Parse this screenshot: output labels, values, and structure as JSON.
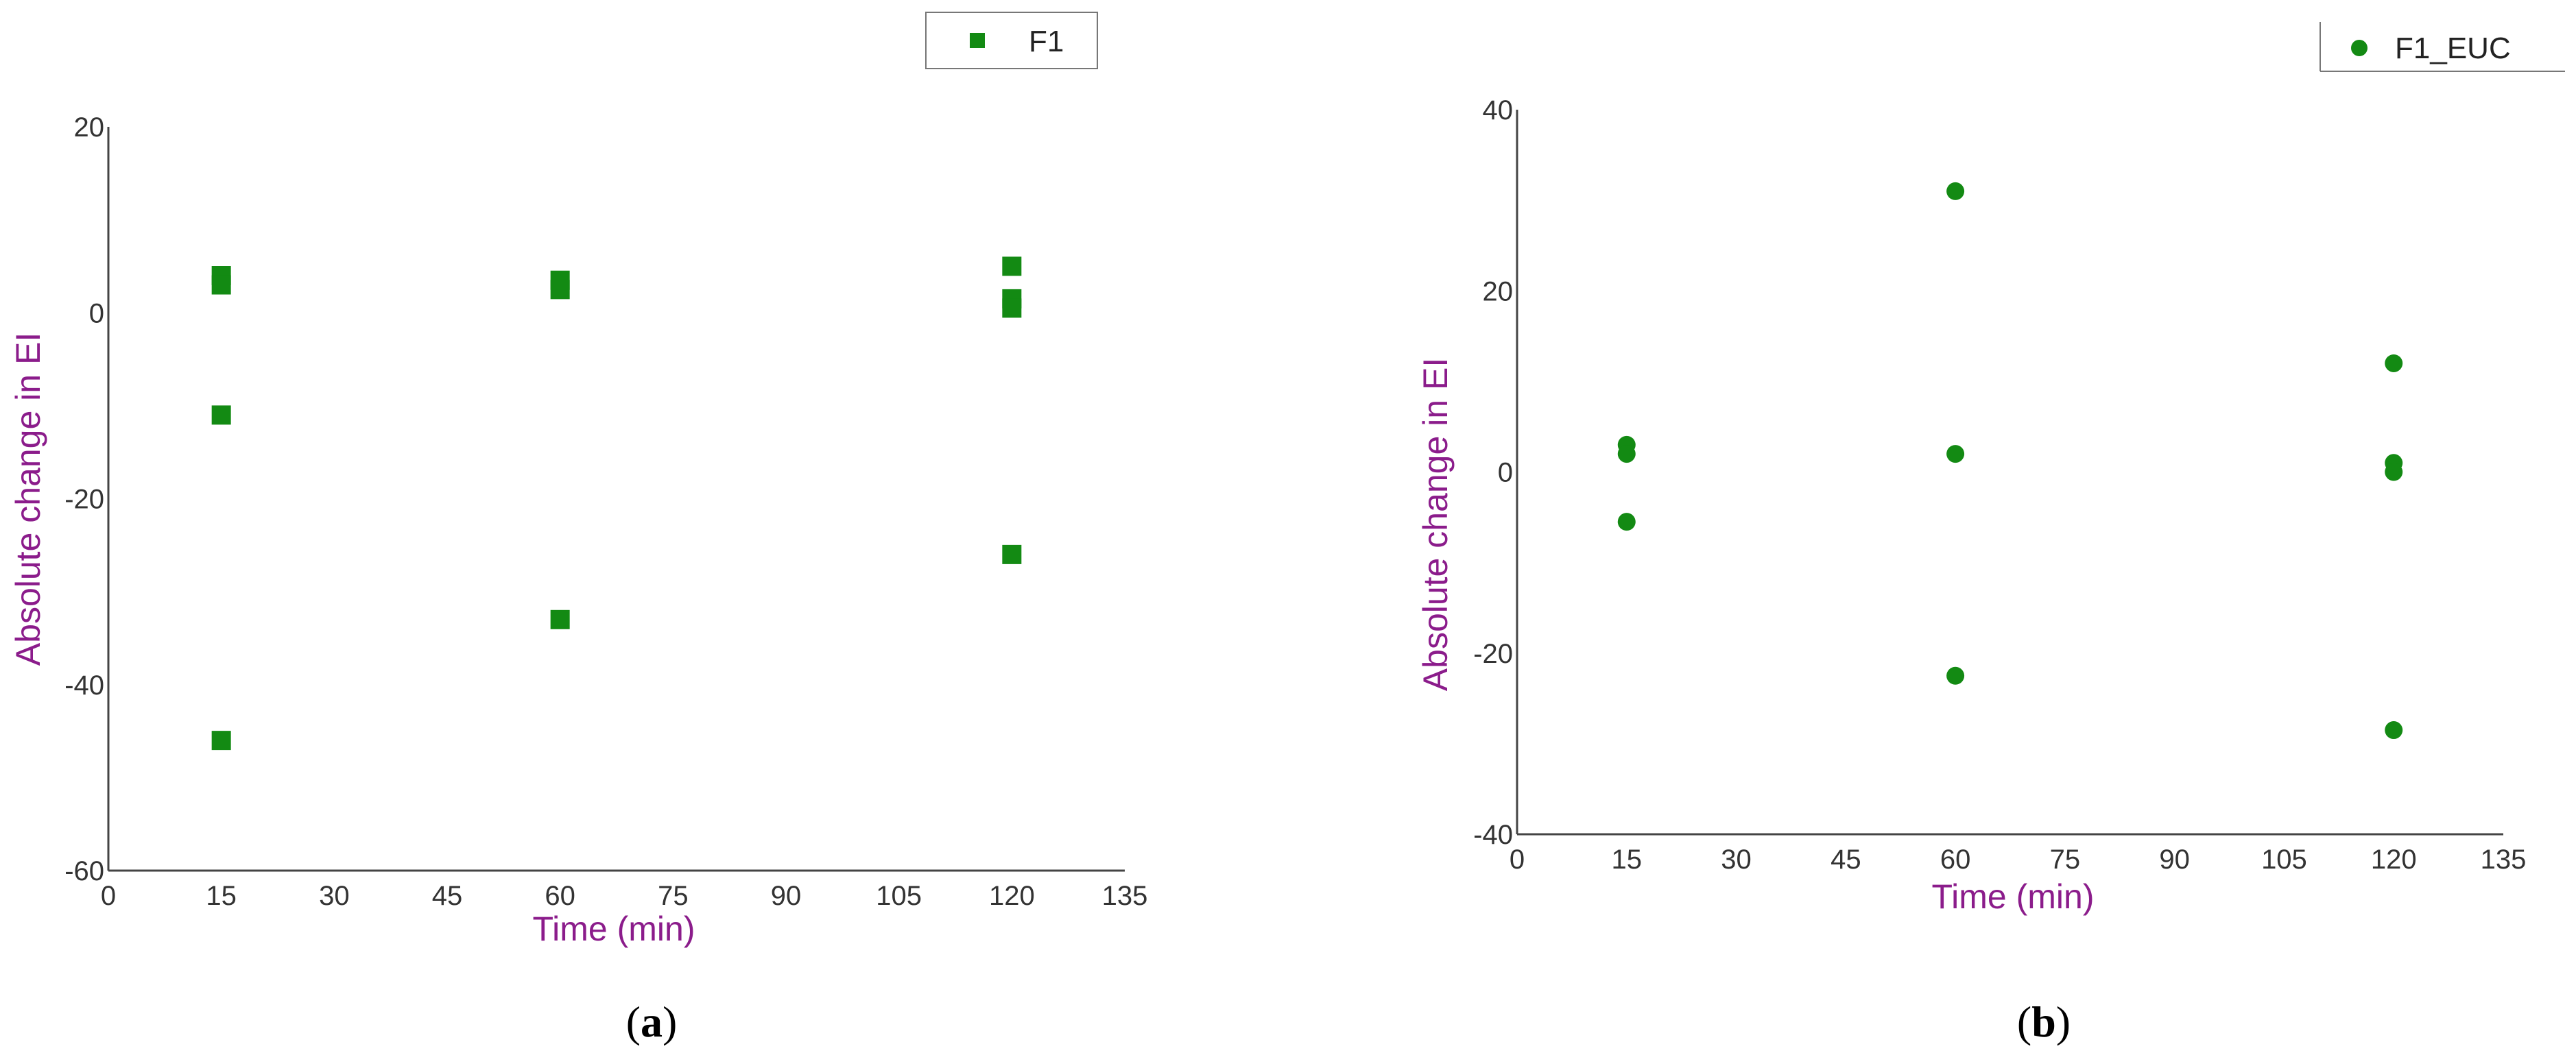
{
  "colors": {
    "marker": "#138A13",
    "axis_title": "#8B1C8B",
    "axis": "#444444"
  },
  "chart_data": [
    {
      "type": "scatter",
      "panel_label": {
        "open": "(",
        "letter": "a",
        "close": ")"
      },
      "xlabel": "Time (min)",
      "ylabel": "Absolute change in EI",
      "xlim": [
        0,
        135
      ],
      "ylim": [
        -60,
        20
      ],
      "xticks": [
        "0",
        "15",
        "30",
        "45",
        "60",
        "75",
        "90",
        "105",
        "120",
        "135"
      ],
      "yticks": [
        "20",
        "0",
        "-20",
        "-40",
        "-60"
      ],
      "legend": "top-right",
      "marker": "square",
      "series": [
        {
          "name": "F1",
          "points": [
            [
              15,
              4
            ],
            [
              15,
              3
            ],
            [
              15,
              -11
            ],
            [
              15,
              -46
            ],
            [
              60,
              3.5
            ],
            [
              60,
              2.5
            ],
            [
              60,
              -33
            ],
            [
              120,
              5
            ],
            [
              120,
              1.5
            ],
            [
              120,
              0.5
            ],
            [
              120,
              -26
            ]
          ]
        }
      ]
    },
    {
      "type": "scatter",
      "panel_label": {
        "open": "(",
        "letter": "b",
        "close": ")"
      },
      "xlabel": "Time (min)",
      "ylabel": "Absolute change in EI",
      "xlim": [
        0,
        135
      ],
      "ylim": [
        -40,
        40
      ],
      "xticks": [
        "0",
        "15",
        "30",
        "45",
        "60",
        "75",
        "90",
        "105",
        "120",
        "135"
      ],
      "yticks": [
        "40",
        "20",
        "0",
        "-20",
        "-40"
      ],
      "legend": "top-right",
      "marker": "circle",
      "series": [
        {
          "name": "F1_EUC",
          "points": [
            [
              15,
              3
            ],
            [
              15,
              2
            ],
            [
              15,
              -5.5
            ],
            [
              60,
              31
            ],
            [
              60,
              2
            ],
            [
              60,
              -22.5
            ],
            [
              120,
              12
            ],
            [
              120,
              1
            ],
            [
              120,
              0
            ],
            [
              120,
              -28.5
            ]
          ]
        }
      ]
    }
  ]
}
